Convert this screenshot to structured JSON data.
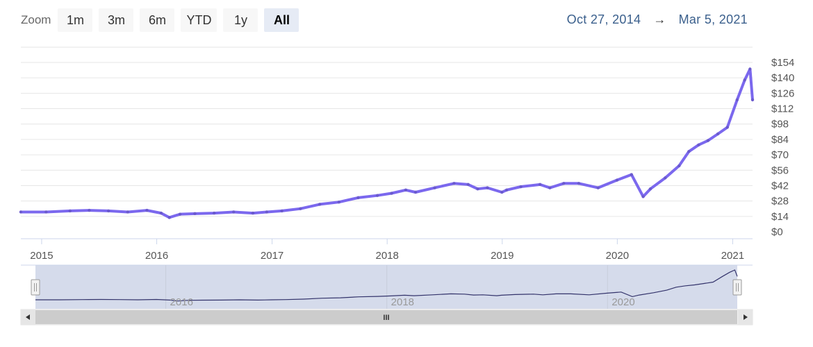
{
  "toolbar": {
    "zoom_label": "Zoom",
    "buttons": [
      "1m",
      "3m",
      "6m",
      "YTD",
      "1y",
      "All"
    ],
    "active": "All"
  },
  "range": {
    "from": "Oct 27, 2014",
    "arrow": "→",
    "to": "Mar 5, 2021"
  },
  "navigator": {
    "scrollbar_grip": "III",
    "left_arrow_icon": "triangle-left",
    "right_arrow_icon": "triangle-right"
  },
  "colors": {
    "line": "#7b68ee",
    "marker": "#6a5acd",
    "navigator_fill": "#d5dbeb",
    "navigator_line": "#33336b",
    "grid": "#e6e6e6"
  },
  "chart_data": {
    "type": "line",
    "title": "",
    "xlabel": "",
    "ylabel": "",
    "x_range": [
      "2014-10-27",
      "2021-03-05"
    ],
    "ylim": [
      0,
      154
    ],
    "y_ticks": [
      "$0",
      "$14",
      "$28",
      "$42",
      "$56",
      "$70",
      "$84",
      "$98",
      "$112",
      "$126",
      "$140",
      "$154"
    ],
    "x_ticks": [
      "2015",
      "2016",
      "2017",
      "2018",
      "2019",
      "2020",
      "2021"
    ],
    "navigator_x_ticks": [
      "2016",
      "2018",
      "2020"
    ],
    "series": [
      {
        "x": [
          "2014-10-27",
          "2015-01-15",
          "2015-04-01",
          "2015-06-01",
          "2015-08-01",
          "2015-10-01",
          "2015-12-01",
          "2016-01-15",
          "2016-02-10",
          "2016-03-15",
          "2016-05-01",
          "2016-07-01",
          "2016-09-01",
          "2016-11-01",
          "2016-12-15",
          "2017-02-01",
          "2017-04-01",
          "2017-06-01",
          "2017-08-01",
          "2017-10-01",
          "2017-12-01",
          "2018-01-15",
          "2018-03-01",
          "2018-04-01",
          "2018-06-01",
          "2018-08-01",
          "2018-09-15",
          "2018-10-15",
          "2018-11-15",
          "2018-12-31",
          "2019-01-15",
          "2019-03-01",
          "2019-05-01",
          "2019-06-01",
          "2019-07-15",
          "2019-09-01",
          "2019-11-01",
          "2019-12-31",
          "2020-02-15",
          "2020-03-23",
          "2020-04-15",
          "2020-06-01",
          "2020-07-15",
          "2020-08-15",
          "2020-09-15",
          "2020-10-15",
          "2020-11-15",
          "2020-12-15",
          "2021-01-15",
          "2021-02-08",
          "2021-02-25",
          "2021-03-05"
        ],
        "y": [
          18,
          18,
          19,
          19.5,
          19,
          18,
          19.5,
          17,
          13,
          16,
          16.5,
          17,
          18,
          17,
          18,
          19,
          21,
          25,
          27,
          31,
          33,
          35,
          38,
          36,
          40,
          44,
          43,
          39,
          40,
          36,
          38,
          41,
          43,
          40,
          44,
          44,
          40,
          47,
          52,
          32,
          39,
          49,
          60,
          73,
          79,
          83,
          89,
          95,
          120,
          138,
          148,
          120
        ]
      }
    ]
  }
}
